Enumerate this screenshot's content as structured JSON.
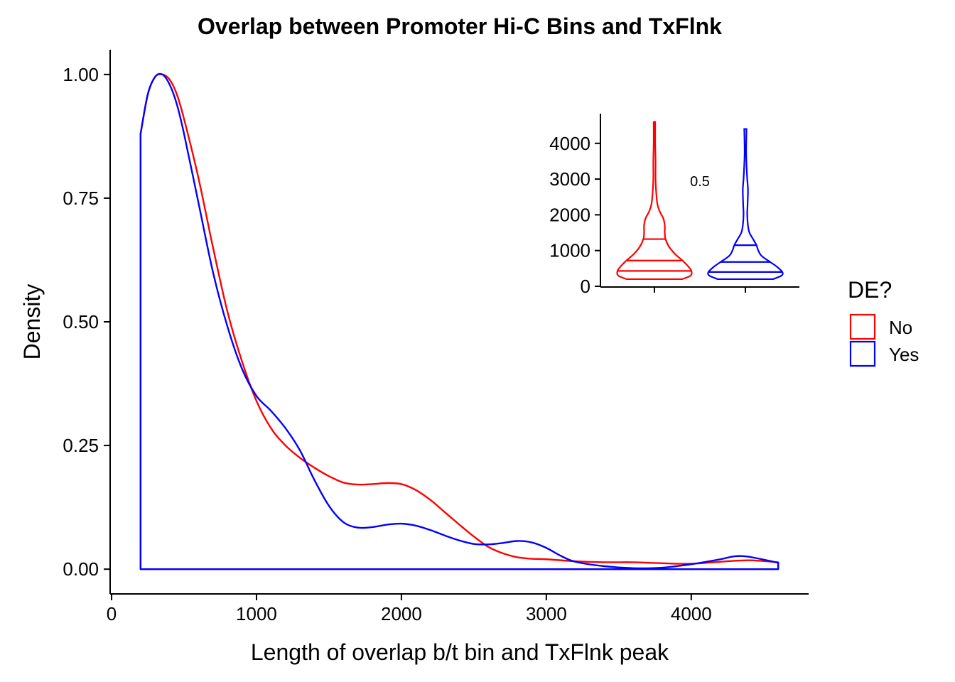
{
  "chart_data": [
    {
      "type": "area",
      "title": "Overlap between Promoter Hi-C Bins and TxFlnk",
      "xlabel": "Length of overlap b/t bin and TxFlnk peak",
      "ylabel": "Density",
      "xlim": [
        -10,
        4810
      ],
      "ylim": [
        -0.05,
        1.05
      ],
      "x_ticks": [
        0,
        1000,
        2000,
        3000,
        4000
      ],
      "y_ticks": [
        "0.00",
        "0.25",
        "0.50",
        "0.75",
        "1.00"
      ],
      "grid": false,
      "legend": {
        "title": "DE?",
        "position": "right",
        "entries": [
          "No",
          "Yes"
        ]
      },
      "series": [
        {
          "name": "No",
          "color": "#ff0000",
          "x": [
            200,
            250,
            300,
            350,
            400,
            450,
            500,
            600,
            700,
            800,
            900,
            1000,
            1100,
            1200,
            1300,
            1400,
            1500,
            1600,
            1700,
            1800,
            1900,
            2000,
            2100,
            2200,
            2300,
            2400,
            2500,
            2600,
            2700,
            2800,
            2900,
            3000,
            3200,
            3400,
            3600,
            3800,
            4000,
            4200,
            4400,
            4600
          ],
          "values": [
            0.88,
            0.96,
            0.995,
            1.0,
            0.99,
            0.96,
            0.91,
            0.79,
            0.65,
            0.52,
            0.42,
            0.34,
            0.285,
            0.25,
            0.225,
            0.205,
            0.188,
            0.175,
            0.171,
            0.172,
            0.174,
            0.172,
            0.16,
            0.14,
            0.115,
            0.09,
            0.066,
            0.045,
            0.032,
            0.024,
            0.021,
            0.02,
            0.016,
            0.014,
            0.014,
            0.012,
            0.011,
            0.015,
            0.018,
            0.014
          ]
        },
        {
          "name": "Yes",
          "color": "#0000ff",
          "x": [
            200,
            250,
            300,
            350,
            400,
            450,
            500,
            600,
            700,
            800,
            900,
            1000,
            1100,
            1200,
            1300,
            1400,
            1500,
            1600,
            1700,
            1800,
            1900,
            2000,
            2100,
            2200,
            2300,
            2400,
            2500,
            2600,
            2700,
            2800,
            2900,
            3000,
            3100,
            3200,
            3400,
            3600,
            3800,
            4000,
            4200,
            4300,
            4400,
            4600
          ],
          "values": [
            0.88,
            0.96,
            0.995,
            1.0,
            0.98,
            0.94,
            0.88,
            0.74,
            0.6,
            0.49,
            0.405,
            0.35,
            0.32,
            0.285,
            0.24,
            0.18,
            0.128,
            0.095,
            0.084,
            0.085,
            0.09,
            0.092,
            0.088,
            0.079,
            0.068,
            0.058,
            0.051,
            0.05,
            0.053,
            0.057,
            0.054,
            0.043,
            0.027,
            0.015,
            0.006,
            0.002,
            0.003,
            0.01,
            0.02,
            0.026,
            0.025,
            0.013
          ]
        }
      ]
    },
    {
      "type": "violin",
      "title": "",
      "xlabel": "",
      "ylabel": "",
      "ylim": [
        -20,
        4830
      ],
      "y_ticks": [
        0,
        1000,
        2000,
        3000,
        4000
      ],
      "annotation": "0.5",
      "series": [
        {
          "name": "No",
          "color": "#ff0000",
          "range": [
            200,
            4600
          ],
          "quantiles": [
            430,
            720,
            1320
          ],
          "profile": [
            [
              200,
              0.75
            ],
            [
              300,
              0.98
            ],
            [
              430,
              1.0
            ],
            [
              550,
              0.92
            ],
            [
              720,
              0.76
            ],
            [
              900,
              0.56
            ],
            [
              1100,
              0.4
            ],
            [
              1320,
              0.3
            ],
            [
              1500,
              0.28
            ],
            [
              1700,
              0.28
            ],
            [
              1900,
              0.24
            ],
            [
              2100,
              0.14
            ],
            [
              2300,
              0.08
            ],
            [
              2600,
              0.05
            ],
            [
              3000,
              0.03
            ],
            [
              3500,
              0.03
            ],
            [
              4000,
              0.02
            ],
            [
              4600,
              0.02
            ]
          ]
        },
        {
          "name": "Yes",
          "color": "#0000ff",
          "range": [
            200,
            4400
          ],
          "quantiles": [
            400,
            680,
            1150
          ],
          "profile": [
            [
              200,
              0.75
            ],
            [
              300,
              0.98
            ],
            [
              400,
              1.0
            ],
            [
              550,
              0.85
            ],
            [
              680,
              0.67
            ],
            [
              850,
              0.44
            ],
            [
              1000,
              0.35
            ],
            [
              1150,
              0.3
            ],
            [
              1300,
              0.22
            ],
            [
              1500,
              0.11
            ],
            [
              1700,
              0.07
            ],
            [
              2000,
              0.05
            ],
            [
              2300,
              0.06
            ],
            [
              2700,
              0.07
            ],
            [
              3000,
              0.05
            ],
            [
              3400,
              0.03
            ],
            [
              3800,
              0.02
            ],
            [
              4400,
              0.03
            ]
          ]
        }
      ]
    }
  ]
}
